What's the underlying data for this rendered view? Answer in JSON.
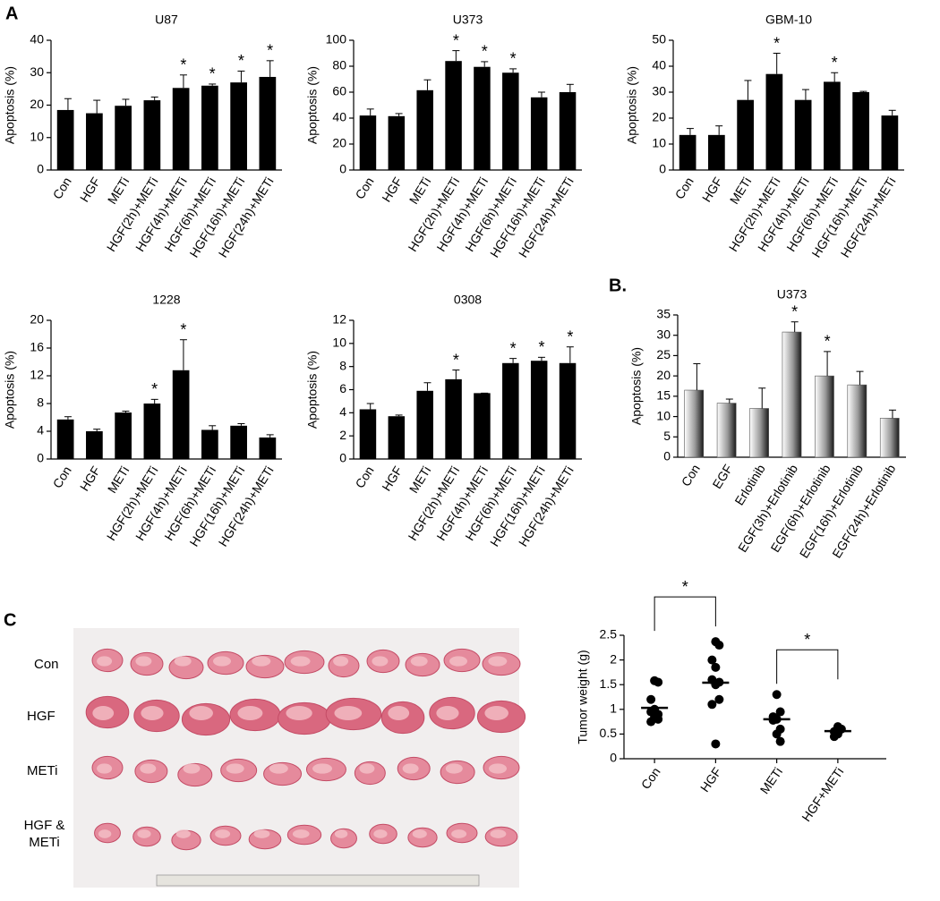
{
  "panel_labels": [
    "A",
    "B.",
    "C"
  ],
  "photo": {
    "row_labels": [
      "Con",
      "HGF",
      "METi",
      "HGF & METi"
    ]
  },
  "chart_data": [
    {
      "type": "bar",
      "title": "U87",
      "ylabel": "Apoptosis (%)",
      "color": "#000000",
      "style": "solid",
      "categories": [
        "Con",
        "HGF",
        "METi",
        "HGF(2h)+METi",
        "HGF(4h)+METi",
        "HGF(6h)+METi",
        "HGF(16h)+METi",
        "HGF(24h)+METi"
      ],
      "values": [
        18.5,
        17.5,
        19.8,
        21.5,
        25.3,
        26,
        27,
        28.7
      ],
      "errors": [
        3.5,
        4,
        2,
        1,
        4,
        0.5,
        3.5,
        5
      ],
      "annotations": [
        {
          "category": "HGF(4h)+METi",
          "text": "*"
        },
        {
          "category": "HGF(6h)+METi",
          "text": "*"
        },
        {
          "category": "HGF(16h)+METi",
          "text": "*"
        },
        {
          "category": "HGF(24h)+METi",
          "text": "*"
        }
      ],
      "ylim": [
        0,
        40
      ],
      "yticks": [
        0,
        10,
        20,
        30,
        40
      ]
    },
    {
      "type": "bar",
      "title": "U373",
      "ylabel": "Apoptosis (%)",
      "color": "#000000",
      "style": "solid",
      "categories": [
        "Con",
        "HGF",
        "METi",
        "HGF(2h)+METi",
        "HGF(4h)+METi",
        "HGF(6h)+METi",
        "HGF(16h)+METi",
        "HGF(24h)+METi"
      ],
      "values": [
        42,
        41.5,
        61.5,
        84,
        79.5,
        75,
        56,
        60
      ],
      "errors": [
        5,
        2,
        8,
        8,
        4,
        3,
        4,
        6
      ],
      "annotations": [
        {
          "category": "HGF(2h)+METi",
          "text": "*"
        },
        {
          "category": "HGF(4h)+METi",
          "text": "*"
        },
        {
          "category": "HGF(6h)+METi",
          "text": "*"
        }
      ],
      "ylim": [
        0,
        100
      ],
      "yticks": [
        0,
        20,
        40,
        60,
        80,
        100
      ]
    },
    {
      "type": "bar",
      "title": "GBM-10",
      "ylabel": "Apoptosis (%)",
      "color": "#000000",
      "style": "solid",
      "categories": [
        "Con",
        "HGF",
        "METi",
        "HGF(2h)+METi",
        "HGF(4h)+METi",
        "HGF(6h)+METi",
        "HGF(16h)+METi",
        "HGF(24h)+METi"
      ],
      "values": [
        13.5,
        13.5,
        27,
        37,
        27,
        34,
        30,
        21
      ],
      "errors": [
        2.5,
        3.5,
        7.5,
        8,
        4,
        3.5,
        0.3,
        2
      ],
      "annotations": [
        {
          "category": "HGF(2h)+METi",
          "text": "*"
        },
        {
          "category": "HGF(6h)+METi",
          "text": "*"
        }
      ],
      "ylim": [
        0,
        50
      ],
      "yticks": [
        0,
        10,
        20,
        30,
        40,
        50
      ]
    },
    {
      "type": "bar",
      "title": "1228",
      "ylabel": "Apoptosis (%)",
      "color": "#000000",
      "style": "solid",
      "categories": [
        "Con",
        "HGF",
        "METi",
        "HGF(2h)+METi",
        "HGF(4h)+METi",
        "HGF(6h)+METi",
        "HGF(16h)+METi",
        "HGF(24h)+METi"
      ],
      "values": [
        5.7,
        4,
        6.7,
        8,
        12.8,
        4.2,
        4.8,
        3.1
      ],
      "errors": [
        0.4,
        0.3,
        0.2,
        0.6,
        4.4,
        0.6,
        0.3,
        0.4
      ],
      "annotations": [
        {
          "category": "HGF(2h)+METi",
          "text": "*"
        },
        {
          "category": "HGF(4h)+METi",
          "text": "*"
        }
      ],
      "ylim": [
        0,
        20
      ],
      "yticks": [
        0,
        4,
        8,
        12,
        16,
        20
      ]
    },
    {
      "type": "bar",
      "title": "0308",
      "ylabel": "Apoptosis (%)",
      "color": "#000000",
      "style": "solid",
      "categories": [
        "Con",
        "HGF",
        "METi",
        "HGF(2h)+METi",
        "HGF(4h)+METi",
        "HGF(6h)+METi",
        "HGF(16h)+METi",
        "HGF(24h)+METi"
      ],
      "values": [
        4.3,
        3.7,
        5.9,
        6.9,
        5.7,
        8.3,
        8.5,
        8.3
      ],
      "errors": [
        0.5,
        0.1,
        0.7,
        0.8,
        0,
        0.4,
        0.3,
        1.4
      ],
      "annotations": [
        {
          "category": "HGF(2h)+METi",
          "text": "*"
        },
        {
          "category": "HGF(6h)+METi",
          "text": "*"
        },
        {
          "category": "HGF(16h)+METi",
          "text": "*"
        },
        {
          "category": "HGF(24h)+METi",
          "text": "*"
        }
      ],
      "ylim": [
        0,
        12
      ],
      "yticks": [
        0,
        2,
        4,
        6,
        8,
        10,
        12
      ]
    },
    {
      "type": "bar",
      "title": "U373",
      "ylabel": "Apoptosis (%)",
      "color": "#9a9a9a",
      "style": "gradient",
      "categories": [
        "Con",
        "EGF",
        "Erlotinib",
        "EGF(3h)+Erlotinib",
        "EGF(6h)+Erlotinib",
        "EGF(16h)+Erlotinib",
        "EGF(24h)+Erlotinib"
      ],
      "values": [
        16.5,
        13.3,
        12,
        30.8,
        20,
        17.8,
        9.6
      ],
      "errors": [
        6.5,
        1,
        5,
        2.5,
        6,
        3.3,
        2
      ],
      "annotations": [
        {
          "category": "EGF(3h)+Erlotinib",
          "text": "*"
        },
        {
          "category": "EGF(6h)+Erlotinib",
          "text": "*"
        }
      ],
      "ylim": [
        0,
        35
      ],
      "yticks": [
        0,
        5,
        10,
        15,
        20,
        25,
        30,
        35
      ]
    },
    {
      "type": "strip",
      "ylabel": "Tumor weight (g)",
      "color": "#000000",
      "categories": [
        "Con",
        "HGF",
        "METi",
        "HGF+METi"
      ],
      "values": [
        [
          1.58,
          1.55,
          1.2,
          1.0,
          0.95,
          0.9,
          0.85,
          0.8,
          0.75
        ],
        [
          2.37,
          2.3,
          2.0,
          1.85,
          1.6,
          1.55,
          1.5,
          1.2,
          1.1,
          0.3
        ],
        [
          1.3,
          0.95,
          0.85,
          0.8,
          0.78,
          0.6,
          0.5,
          0.35
        ],
        [
          0.65,
          0.6,
          0.55,
          0.5,
          0.45
        ]
      ],
      "means": [
        1.03,
        1.54,
        0.8,
        0.56
      ],
      "comparisons": [
        {
          "from": "Con",
          "to": "HGF",
          "text": "*"
        },
        {
          "from": "METi",
          "to": "HGF+METi",
          "text": "*"
        }
      ],
      "ylim": [
        0,
        2.5
      ],
      "yticks": [
        0,
        0.5,
        1,
        1.5,
        2,
        2.5
      ]
    }
  ]
}
